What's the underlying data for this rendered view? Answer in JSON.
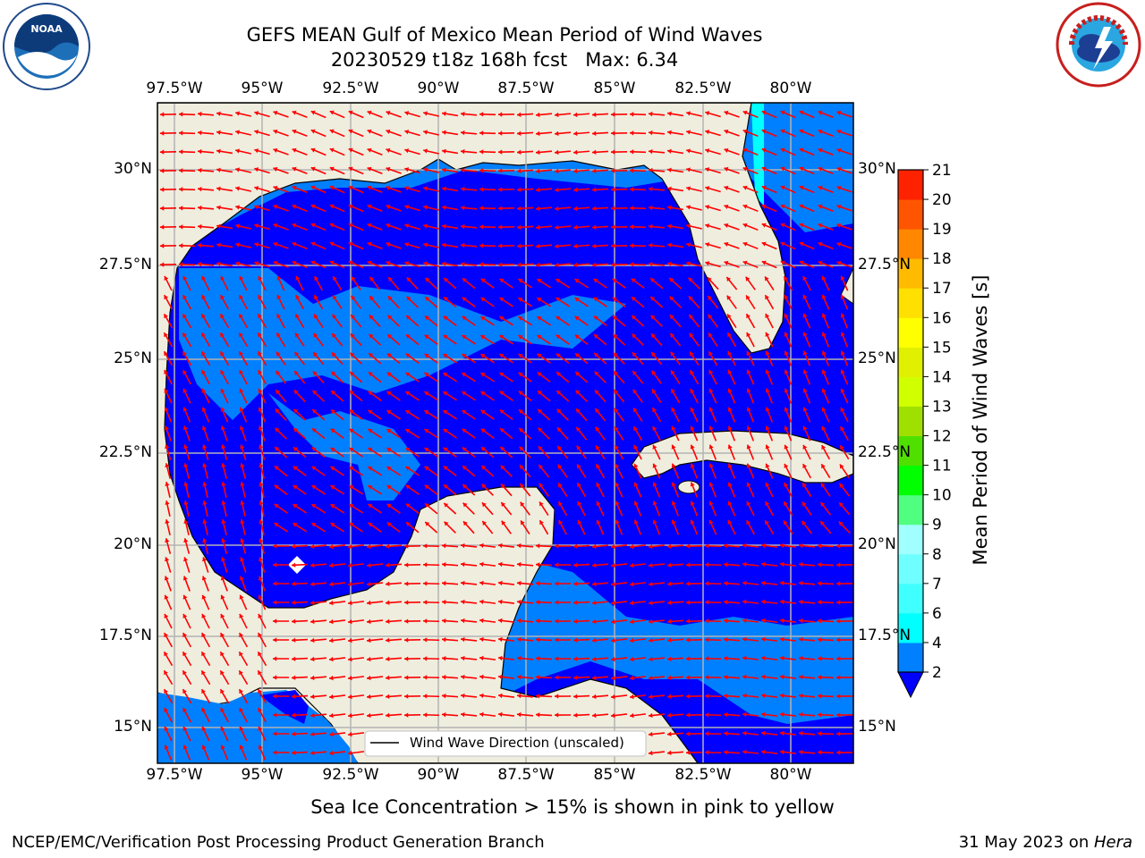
{
  "header": {
    "title_line1": "GEFS MEAN Gulf of Mexico Mean Period of Wind Waves",
    "title_line2": "20230529 t18z 168h fcst",
    "max_label": "Max: 6.34"
  },
  "logos": {
    "left": "noaa-logo",
    "right": "nws-logo"
  },
  "map": {
    "lon_ticks": [
      "97.5°W",
      "95°W",
      "92.5°W",
      "90°W",
      "87.5°W",
      "85°W",
      "82.5°W",
      "80°W"
    ],
    "lat_ticks_left": [
      "30°N",
      "27.5°N",
      "25°N",
      "22.5°N",
      "20°N",
      "17.5°N",
      "15°N"
    ],
    "lat_ticks_right": [
      "30°N",
      "27.5°N",
      "25°N",
      "22.5°N",
      "20°N",
      "17.5°N",
      "15°N"
    ],
    "legend_label": "Wind Wave Direction (unscaled)",
    "land_color": "#efedde",
    "ocean_colors": {
      "2-4": "#0080ff",
      "below-2": "#0000ff",
      "4-6": "#00ffff"
    },
    "vector_color": "#ff0000",
    "grid_color": "#b3b3b3"
  },
  "colorbar": {
    "label": "Mean Period of Wind Waves [s]",
    "ticks": [
      "2",
      "4",
      "6",
      "7",
      "8",
      "9",
      "10",
      "11",
      "12",
      "13",
      "14",
      "15",
      "16",
      "17",
      "18",
      "19",
      "20",
      "21"
    ],
    "colors": [
      "#0080ff",
      "#00ffff",
      "#40ffff",
      "#70ffff",
      "#a0ffff",
      "#50ff80",
      "#00ff00",
      "#50e000",
      "#a0e000",
      "#d0ff00",
      "#e0f000",
      "#ffff00",
      "#ffe000",
      "#ffbb00",
      "#ff8800",
      "#ff5500",
      "#ff2200",
      "#ff0000"
    ],
    "under_color": "#0000ff"
  },
  "note": "Sea Ice Concentration > 15% is shown in pink to yellow",
  "footer": {
    "left": "NCEP/EMC/Verification Post Processing Product Generation Branch",
    "date": "31 May 2023 on ",
    "machine": "Hera"
  }
}
